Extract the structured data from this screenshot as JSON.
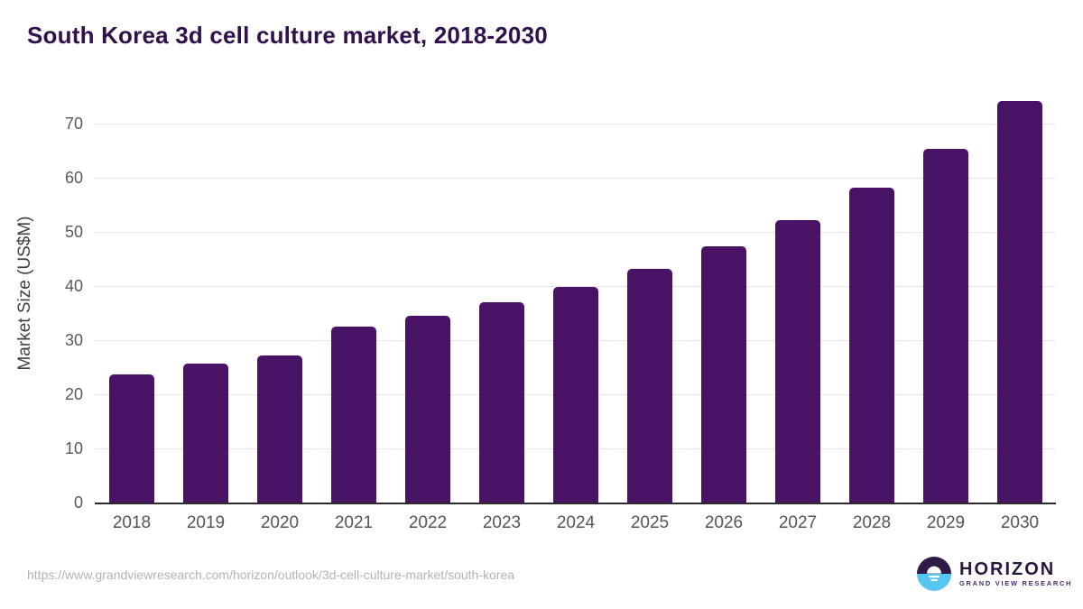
{
  "page": {
    "title": "South Korea 3d cell culture market, 2018-2030",
    "source_url": "https://www.grandviewresearch.com/horizon/outlook/3d-cell-culture-market/south-korea"
  },
  "logo": {
    "icon": "sunset-horizon-icon",
    "name": "HORIZON",
    "subtitle": "GRAND VIEW RESEARCH"
  },
  "colors": {
    "bar": "#481265",
    "title_text": "#31114c",
    "axis_tick_text": "#595959",
    "axis_label_text": "#3f3f3f",
    "gridline": "#e6e6e6",
    "axis_line": "#2b2b2b",
    "url_text": "#b3b3b3",
    "logo_circle_top": "#2e1a47",
    "logo_circle_bottom": "#56c5f0",
    "logo_name_text": "#2a1640",
    "logo_subtitle_text": "#4a2a75"
  },
  "chart_data": {
    "type": "bar",
    "title": "South Korea 3d cell culture market, 2018-2030",
    "categories": [
      "2018",
      "2019",
      "2020",
      "2021",
      "2022",
      "2023",
      "2024",
      "2025",
      "2026",
      "2027",
      "2028",
      "2029",
      "2030"
    ],
    "values": [
      23.7,
      25.6,
      27.1,
      32.5,
      34.5,
      37.0,
      39.8,
      43.1,
      47.3,
      52.1,
      58.1,
      65.3,
      74.2
    ],
    "xlabel": "",
    "ylabel": "Market Size (US$M)",
    "ylim": [
      0,
      75
    ],
    "yticks": [
      0,
      10,
      20,
      30,
      40,
      50,
      60,
      70
    ],
    "grid": true,
    "legend": false,
    "bar_color": "#481265"
  }
}
